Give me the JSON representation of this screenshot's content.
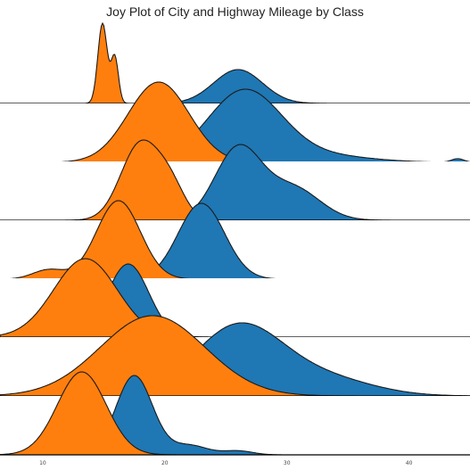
{
  "chart_data": {
    "type": "area",
    "title": "Joy Plot of City and Highway Mileage by Class",
    "xlabel": "",
    "ylabel": "",
    "xlim": [
      6.5,
      45
    ],
    "x_ticks": [
      "10",
      "20",
      "30",
      "40"
    ],
    "grid": false,
    "legend": "none",
    "colors": {
      "cty": "#ff7f0e",
      "hwy": "#1f77b4",
      "baseline": "#000000"
    },
    "ridges": [
      {
        "hwy": {
          "peaks": [
            [
              26.0,
              1.0,
              2.0
            ]
          ]
        },
        "cty": {
          "peaks": [
            [
              14.9,
              1.0,
              0.38
            ],
            [
              15.9,
              0.58,
              0.3
            ]
          ]
        }
      },
      {
        "hwy": {
          "peaks": [
            [
              26.5,
              1.0,
              3.0
            ],
            [
              32.5,
              0.1,
              4.0
            ],
            [
              44.0,
              0.05,
              0.5
            ]
          ]
        },
        "cty": {
          "peaks": [
            [
              19.5,
              1.0,
              2.5
            ]
          ]
        }
      },
      {
        "hwy": {
          "peaks": [
            [
              26.0,
              1.0,
              1.9
            ],
            [
              30.5,
              0.45,
              2.2
            ]
          ]
        },
        "cty": {
          "peaks": [
            [
              18.0,
              1.0,
              1.6
            ],
            [
              20.5,
              0.38,
              1.2
            ]
          ]
        }
      },
      {
        "hwy": {
          "peaks": [
            [
              23.0,
              1.0,
              1.9
            ]
          ]
        },
        "cty": {
          "peaks": [
            [
              16.2,
              1.0,
              1.8
            ],
            [
              10.5,
              0.12,
              1.3
            ]
          ]
        }
      },
      {
        "hwy": {
          "peaks": [
            [
              17.0,
              1.0,
              1.7
            ]
          ]
        },
        "cty": {
          "peaks": [
            [
              13.5,
              1.0,
              2.6
            ]
          ]
        }
      },
      {
        "hwy": {
          "peaks": [
            [
              26.0,
              1.0,
              3.6
            ],
            [
              33.0,
              0.25,
              4.0
            ]
          ]
        },
        "cty": {
          "peaks": [
            [
              19.0,
              1.0,
              4.3
            ]
          ]
        }
      },
      {
        "hwy": {
          "peaks": [
            [
              17.5,
              1.0,
              1.5
            ],
            [
              22.0,
              0.12,
              1.5
            ],
            [
              26.0,
              0.05,
              1.2
            ]
          ]
        },
        "cty": {
          "peaks": [
            [
              13.2,
              1.0,
              2.0
            ]
          ]
        }
      }
    ]
  }
}
